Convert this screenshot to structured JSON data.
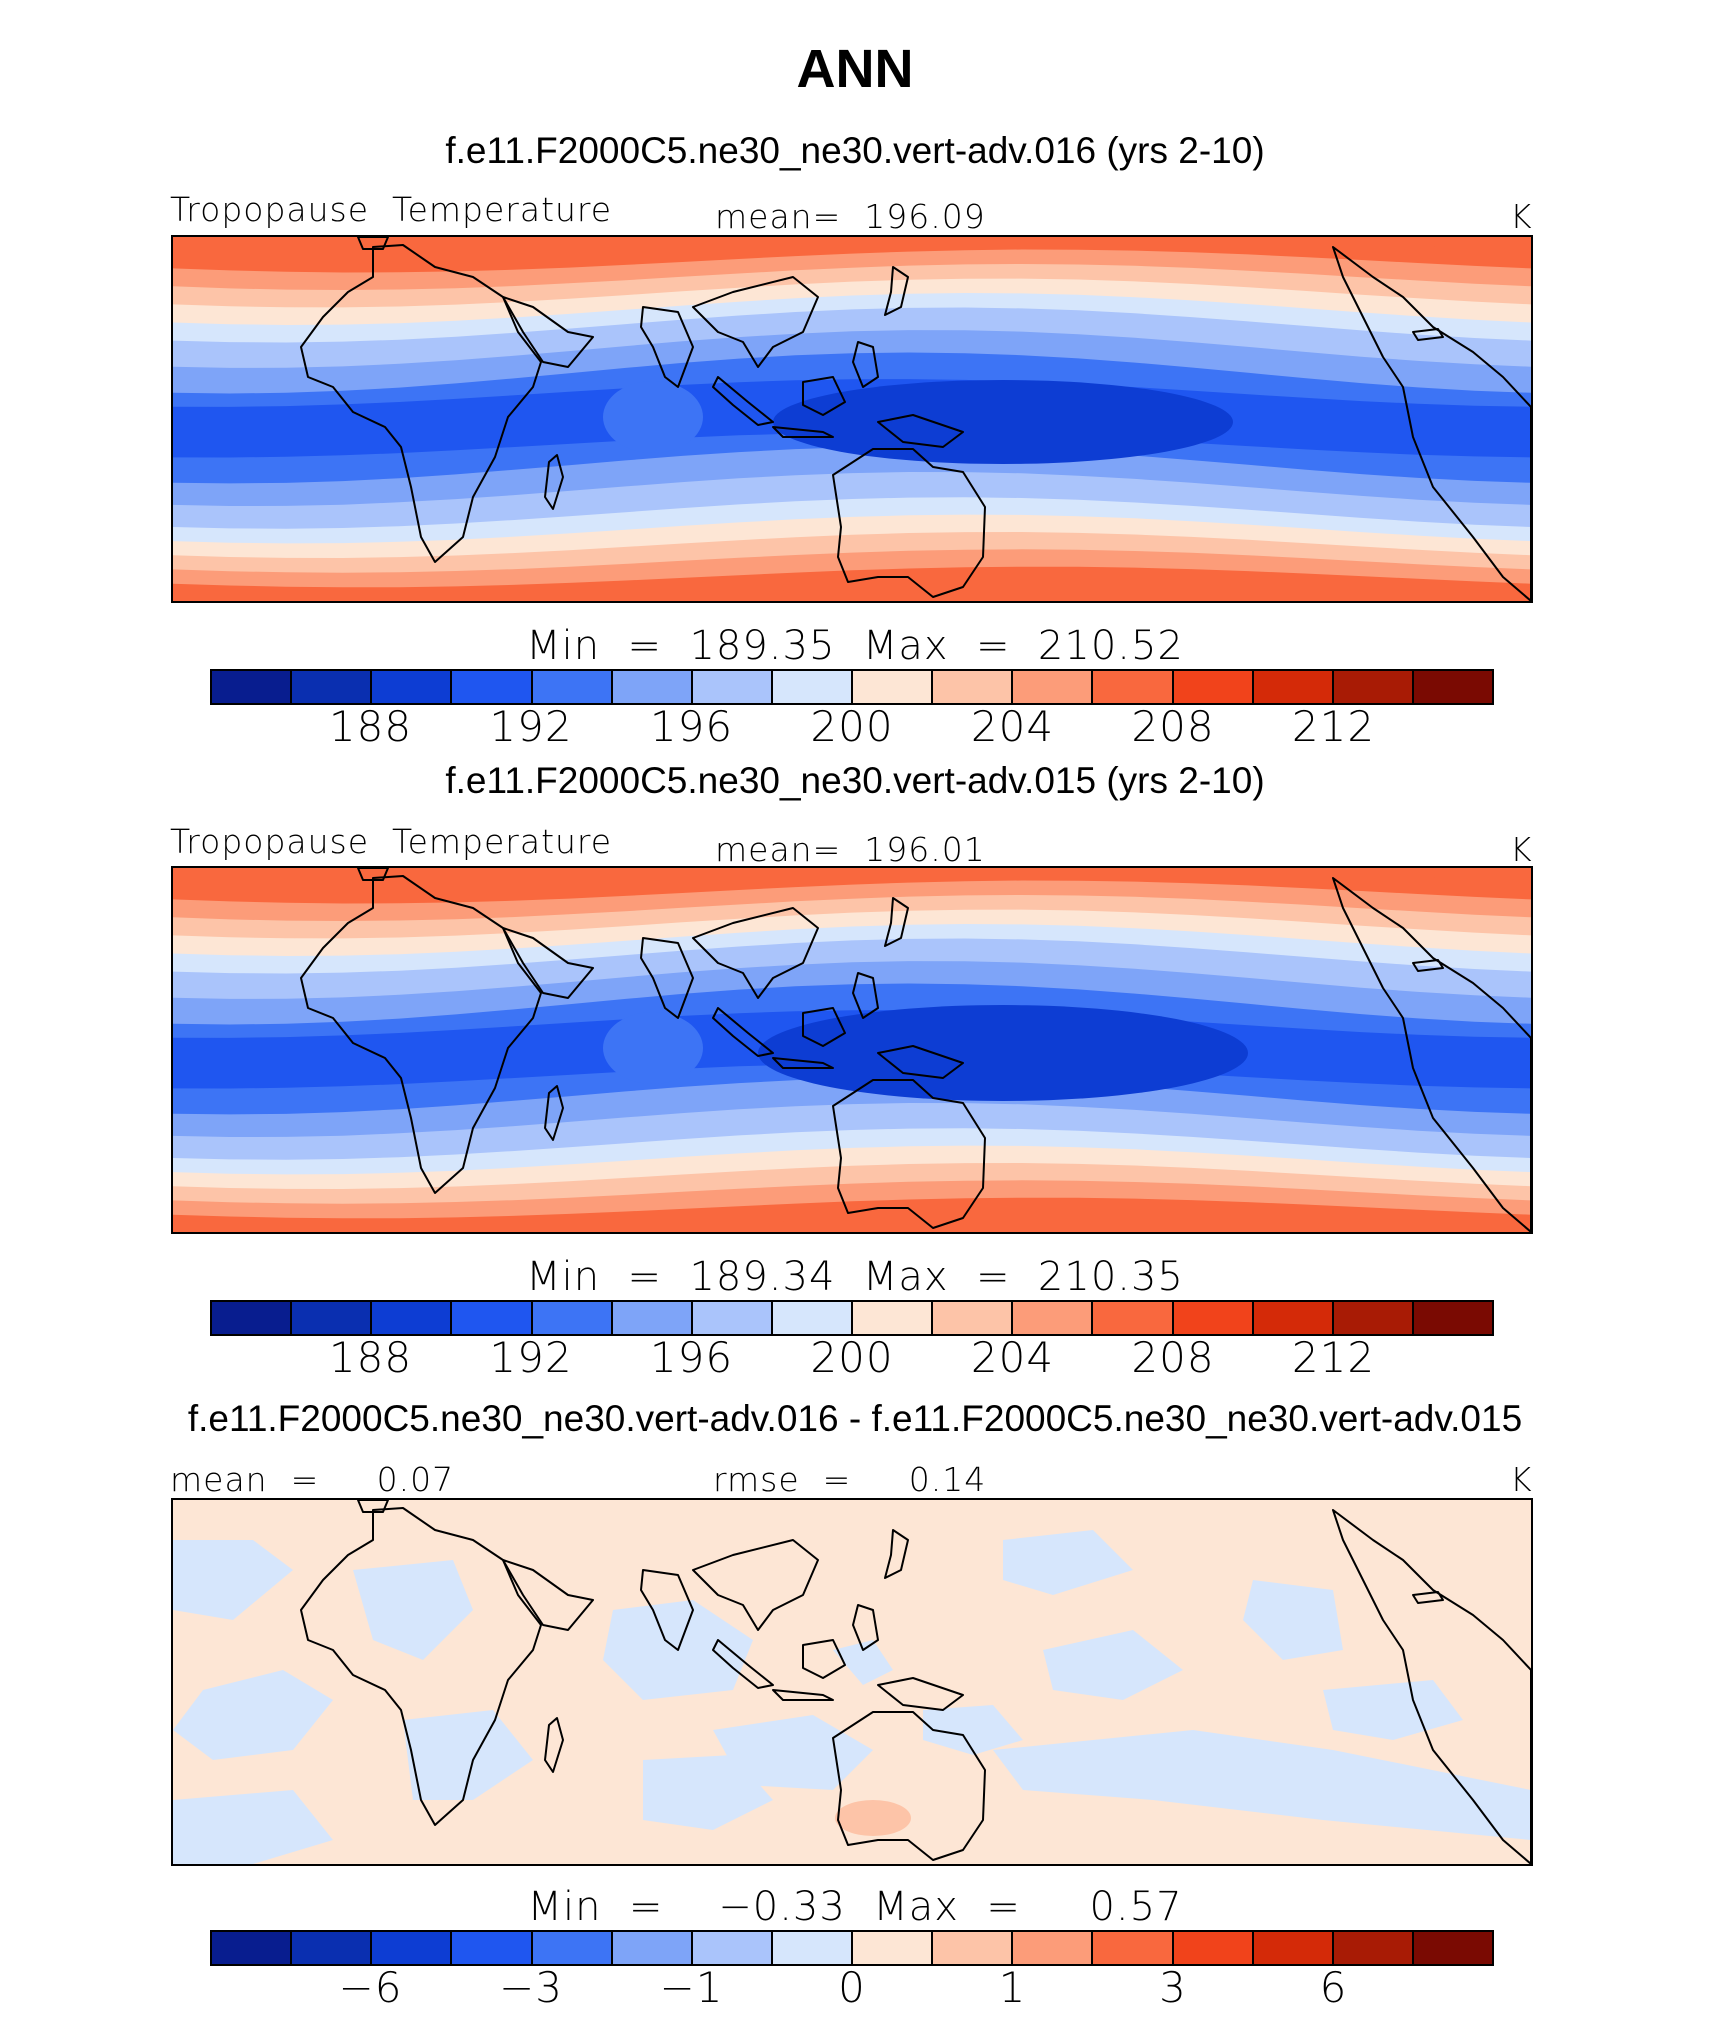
{
  "figure_title": "ANN",
  "colors": {
    "levels": [
      "#081d8f",
      "#0a2fb0",
      "#0d3dd3",
      "#1f56f0",
      "#3d74f5",
      "#7ea4f8",
      "#aac4fb",
      "#d6e6fc",
      "#fde6d5",
      "#fdc4a8",
      "#fc9c79",
      "#f9683e",
      "#f1431b",
      "#d42a08",
      "#a81b05",
      "#7a0a02"
    ],
    "coastline": "#000000"
  },
  "panels": [
    {
      "run_title": "f.e11.F2000C5.ne30_ne30.vert-adv.016 (yrs 2-10)",
      "left_label": "Tropopause  Temperature",
      "center_label": "mean=  196.09",
      "units": "K",
      "min_max": "Min  =  189.35  Max  =  210.52",
      "colorbar_ticks": [
        "188",
        "192",
        "196",
        "200",
        "204",
        "208",
        "212"
      ],
      "tick_positions": [
        2,
        4,
        6,
        8,
        10,
        12,
        14
      ],
      "kind": "mean"
    },
    {
      "run_title": "f.e11.F2000C5.ne30_ne30.vert-adv.015 (yrs 2-10)",
      "left_label": "Tropopause  Temperature",
      "center_label": "mean=  196.01",
      "units": "K",
      "min_max": "Min  =  189.34  Max  =  210.35",
      "colorbar_ticks": [
        "188",
        "192",
        "196",
        "200",
        "204",
        "208",
        "212"
      ],
      "tick_positions": [
        2,
        4,
        6,
        8,
        10,
        12,
        14
      ],
      "kind": "mean"
    },
    {
      "run_title": "f.e11.F2000C5.ne30_ne30.vert-adv.016 - f.e11.F2000C5.ne30_ne30.vert-adv.015",
      "left_label": "mean  =     0.07",
      "center_label": "rmse  =     0.14",
      "units": "K",
      "min_max": "Min  =    −0.33  Max  =     0.57",
      "colorbar_ticks": [
        "−6",
        "−3",
        "−1",
        "0",
        "1",
        "3",
        "6"
      ],
      "tick_positions": [
        2,
        4,
        6,
        8,
        10,
        12,
        14
      ],
      "kind": "diff"
    }
  ]
}
